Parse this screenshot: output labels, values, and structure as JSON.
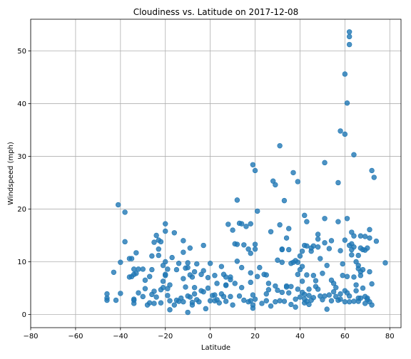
{
  "chart_data": {
    "type": "scatter",
    "title": "Cloudiness vs. Latitude on 2017-12-08",
    "xlabel": "Latitude",
    "ylabel": "Windspeed (mph)",
    "xlim": [
      -80,
      85
    ],
    "ylim": [
      -2.5,
      56
    ],
    "xticks": [
      -80,
      -60,
      -40,
      -20,
      0,
      20,
      40,
      60,
      80
    ],
    "yticks": [
      0,
      10,
      20,
      30,
      40,
      50
    ],
    "grid": true,
    "marker_color": "#1f77b4",
    "points": [
      [
        -46,
        2.7
      ],
      [
        -46,
        3.1
      ],
      [
        -46,
        3.9
      ],
      [
        -43,
        8
      ],
      [
        -42,
        2.7
      ],
      [
        -41,
        20.8
      ],
      [
        -40,
        9.9
      ],
      [
        -40,
        4
      ],
      [
        -38,
        13.8
      ],
      [
        -38,
        19.4
      ],
      [
        -36,
        7.1
      ],
      [
        -36,
        10.6
      ],
      [
        -35,
        10.6
      ],
      [
        -35,
        7.2
      ],
      [
        -34,
        7.6
      ],
      [
        -34,
        2.1
      ],
      [
        -34,
        2.7
      ],
      [
        -34,
        2.9
      ],
      [
        -34,
        8.6
      ],
      [
        -33,
        11.7
      ],
      [
        -33,
        7.8
      ],
      [
        -32,
        8.6
      ],
      [
        -32,
        4.1
      ],
      [
        -30,
        3.4
      ],
      [
        -30,
        8.6
      ],
      [
        -29,
        6.5
      ],
      [
        -29,
        4.9
      ],
      [
        -28,
        1.8
      ],
      [
        -27,
        2.2
      ],
      [
        -27,
        7.2
      ],
      [
        -26,
        11.1
      ],
      [
        -26,
        3.8
      ],
      [
        -26,
        8.5
      ],
      [
        -25,
        13.7
      ],
      [
        -25,
        4.4
      ],
      [
        -25,
        2.1
      ],
      [
        -24,
        15
      ],
      [
        -24,
        3.3
      ],
      [
        -23,
        14.1
      ],
      [
        -23,
        11.2
      ],
      [
        -23,
        12.4
      ],
      [
        -22,
        4.7
      ],
      [
        -22,
        2.2
      ],
      [
        -22,
        13.8
      ],
      [
        -21,
        9.3
      ],
      [
        -21,
        5.1
      ],
      [
        -21,
        6.3
      ],
      [
        -20,
        17.2
      ],
      [
        -20,
        15.8
      ],
      [
        -20,
        10
      ],
      [
        -20,
        7.4
      ],
      [
        -20,
        7.6
      ],
      [
        -19,
        3.6
      ],
      [
        -19,
        8.6
      ],
      [
        -19,
        4.9
      ],
      [
        -18,
        0.9
      ],
      [
        -18,
        5.6
      ],
      [
        -18,
        2.6
      ],
      [
        -17,
        10.8
      ],
      [
        -16,
        15.5
      ],
      [
        -16,
        1.8
      ],
      [
        -15,
        2.7
      ],
      [
        -15,
        8.5
      ],
      [
        -14,
        2.5
      ],
      [
        -14,
        9.7
      ],
      [
        -13,
        3.1
      ],
      [
        -12,
        6.8
      ],
      [
        -12,
        11.8
      ],
      [
        -12,
        14
      ],
      [
        -12,
        2.4
      ],
      [
        -11,
        5.2
      ],
      [
        -11,
        8.8
      ],
      [
        -10,
        3.5
      ],
      [
        -10,
        9.8
      ],
      [
        -10,
        0.4
      ],
      [
        -10,
        8.9
      ],
      [
        -9,
        7.5
      ],
      [
        -9,
        3.3
      ],
      [
        -9,
        12.6
      ],
      [
        -8,
        1.8
      ],
      [
        -8,
        2.3
      ],
      [
        -8,
        7.1
      ],
      [
        -7,
        5.1
      ],
      [
        -7,
        8.1
      ],
      [
        -7,
        3.9
      ],
      [
        -6,
        9.6
      ],
      [
        -6,
        2.8
      ],
      [
        -5,
        2.4
      ],
      [
        -4,
        4.5
      ],
      [
        -4,
        7.6
      ],
      [
        -3,
        13.1
      ],
      [
        -3,
        8.3
      ],
      [
        -3,
        4.3
      ],
      [
        -2,
        1.1
      ],
      [
        -1,
        5
      ],
      [
        -1,
        7
      ],
      [
        0,
        9.7
      ],
      [
        0,
        2.6
      ],
      [
        1,
        3.6
      ],
      [
        2,
        3.7
      ],
      [
        2,
        2.6
      ],
      [
        2,
        7.4
      ],
      [
        3,
        2.8
      ],
      [
        3,
        5.9
      ],
      [
        4,
        2.2
      ],
      [
        5,
        3.9
      ],
      [
        5,
        9.1
      ],
      [
        6,
        3.4
      ],
      [
        6,
        7.6
      ],
      [
        7,
        7.1
      ],
      [
        7,
        2.5
      ],
      [
        7,
        5.6
      ],
      [
        7,
        5.5
      ],
      [
        8,
        17.1
      ],
      [
        9,
        3.4
      ],
      [
        9,
        7.1
      ],
      [
        9,
        6.6
      ],
      [
        10,
        1.8
      ],
      [
        10,
        16
      ],
      [
        11,
        13.4
      ],
      [
        11,
        5.9
      ],
      [
        12,
        21.7
      ],
      [
        12,
        13.3
      ],
      [
        12,
        10.1
      ],
      [
        13,
        17.3
      ],
      [
        13,
        3.5
      ],
      [
        14,
        17.2
      ],
      [
        14,
        5.1
      ],
      [
        14,
        8.9
      ],
      [
        15,
        2.7
      ],
      [
        15,
        13.2
      ],
      [
        16,
        16.7
      ],
      [
        17,
        12.4
      ],
      [
        17,
        2.4
      ],
      [
        18,
        7.9
      ],
      [
        18,
        11.6
      ],
      [
        18,
        17.2
      ],
      [
        18,
        2.6
      ],
      [
        18,
        6.1
      ],
      [
        19,
        28.4
      ],
      [
        19,
        1.8
      ],
      [
        19,
        3.7
      ],
      [
        19,
        1.2
      ],
      [
        20,
        27.3
      ],
      [
        20,
        13.3
      ],
      [
        20,
        2.9
      ],
      [
        20,
        12.4
      ],
      [
        21,
        19.6
      ],
      [
        21,
        7.2
      ],
      [
        22,
        8.9
      ],
      [
        23,
        2.1
      ],
      [
        24,
        7.6
      ],
      [
        25,
        2.6
      ],
      [
        25,
        3.9
      ],
      [
        25,
        7.5
      ],
      [
        26,
        4.7
      ],
      [
        26,
        5.9
      ],
      [
        27,
        15.7
      ],
      [
        27,
        1.6
      ],
      [
        28,
        25.3
      ],
      [
        29,
        24.6
      ],
      [
        29,
        5.4
      ],
      [
        29,
        2.4
      ],
      [
        30,
        4.6
      ],
      [
        30,
        10.3
      ],
      [
        31,
        32
      ],
      [
        31,
        17
      ],
      [
        31,
        2.6
      ],
      [
        32,
        12.3
      ],
      [
        32,
        4.2
      ],
      [
        32,
        9.9
      ],
      [
        32,
        12.4
      ],
      [
        33,
        21.6
      ],
      [
        33,
        2.5
      ],
      [
        34,
        14.5
      ],
      [
        34,
        5.4
      ],
      [
        34,
        5.2
      ],
      [
        35,
        16.3
      ],
      [
        35,
        4.1
      ],
      [
        35,
        12.3
      ],
      [
        36,
        9.7
      ],
      [
        36,
        1.9
      ],
      [
        36,
        5.3
      ],
      [
        37,
        26.9
      ],
      [
        37,
        9.9
      ],
      [
        38,
        1.4
      ],
      [
        38,
        2.9
      ],
      [
        38,
        10.2
      ],
      [
        39,
        25.2
      ],
      [
        39,
        7.6
      ],
      [
        39,
        4.8
      ],
      [
        39,
        9.9
      ],
      [
        40,
        3.3
      ],
      [
        40,
        8.5
      ],
      [
        40,
        11.1
      ],
      [
        41,
        4.2
      ],
      [
        41,
        12
      ],
      [
        41,
        9.1
      ],
      [
        41,
        6.3
      ],
      [
        42,
        2.9
      ],
      [
        42,
        2.2
      ],
      [
        42,
        3.8
      ],
      [
        42,
        18.8
      ],
      [
        42,
        13.1
      ],
      [
        43,
        2.5
      ],
      [
        43,
        17.6
      ],
      [
        43,
        7.5
      ],
      [
        43,
        13
      ],
      [
        44,
        4.8
      ],
      [
        44,
        3.6
      ],
      [
        44,
        1.9
      ],
      [
        45,
        12.6
      ],
      [
        45,
        12
      ],
      [
        45,
        2.7
      ],
      [
        46,
        13
      ],
      [
        46,
        7.4
      ],
      [
        46,
        3.2
      ],
      [
        47,
        5.3
      ],
      [
        47,
        6.4
      ],
      [
        48,
        15.2
      ],
      [
        48,
        14.3
      ],
      [
        48,
        4.8
      ],
      [
        48,
        12.8
      ],
      [
        49,
        10.6
      ],
      [
        49,
        3.5
      ],
      [
        50,
        7.8
      ],
      [
        50,
        2.8
      ],
      [
        51,
        28.8
      ],
      [
        51,
        18.2
      ],
      [
        51,
        13.6
      ],
      [
        51,
        3.5
      ],
      [
        52,
        9.3
      ],
      [
        52,
        1
      ],
      [
        53,
        12.5
      ],
      [
        53,
        3.7
      ],
      [
        54,
        14
      ],
      [
        54,
        6.5
      ],
      [
        54,
        2.6
      ],
      [
        55,
        4.3
      ],
      [
        55,
        5.9
      ],
      [
        56,
        3.4
      ],
      [
        56,
        5.1
      ],
      [
        57,
        25
      ],
      [
        57,
        17.6
      ],
      [
        57,
        2.7
      ],
      [
        58,
        12.1
      ],
      [
        58,
        34.8
      ],
      [
        58,
        3.9
      ],
      [
        58,
        2.9
      ],
      [
        59,
        9.6
      ],
      [
        59,
        7.4
      ],
      [
        60,
        34.2
      ],
      [
        60,
        45.6
      ],
      [
        60,
        14.1
      ],
      [
        60,
        4.5
      ],
      [
        60,
        2.4
      ],
      [
        61,
        40.1
      ],
      [
        61,
        7.2
      ],
      [
        61,
        4.1
      ],
      [
        61,
        18.2
      ],
      [
        62,
        53.6
      ],
      [
        62,
        52.7
      ],
      [
        62,
        51.2
      ],
      [
        62,
        13.1
      ],
      [
        62,
        3.5
      ],
      [
        62,
        2.4
      ],
      [
        63,
        12.3
      ],
      [
        63,
        15.6
      ],
      [
        63,
        11.3
      ],
      [
        63,
        13.4
      ],
      [
        64,
        30.3
      ],
      [
        64,
        14.9
      ],
      [
        64,
        2.5
      ],
      [
        64,
        7.1
      ],
      [
        64,
        12.8
      ],
      [
        65,
        10
      ],
      [
        65,
        5.6
      ],
      [
        65,
        4.5
      ],
      [
        66,
        3.1
      ],
      [
        66,
        8.7
      ],
      [
        66,
        11.2
      ],
      [
        66,
        9.3
      ],
      [
        66,
        2.5
      ],
      [
        67,
        12.6
      ],
      [
        67,
        14.9
      ],
      [
        67,
        7.4
      ],
      [
        67,
        3.1
      ],
      [
        67,
        8.1
      ],
      [
        68,
        12.3
      ],
      [
        68,
        5
      ],
      [
        68,
        8.5
      ],
      [
        69,
        12.2
      ],
      [
        69,
        3.4
      ],
      [
        69,
        14.8
      ],
      [
        69,
        2.1
      ],
      [
        70,
        12.6
      ],
      [
        70,
        3.1
      ],
      [
        70,
        2.8
      ],
      [
        71,
        16.1
      ],
      [
        71,
        14.5
      ],
      [
        71,
        8.1
      ],
      [
        71,
        2.4
      ],
      [
        72,
        27.3
      ],
      [
        72,
        5.8
      ],
      [
        72,
        1.8
      ],
      [
        73,
        26
      ],
      [
        74,
        13.9
      ],
      [
        78,
        9.8
      ]
    ]
  }
}
